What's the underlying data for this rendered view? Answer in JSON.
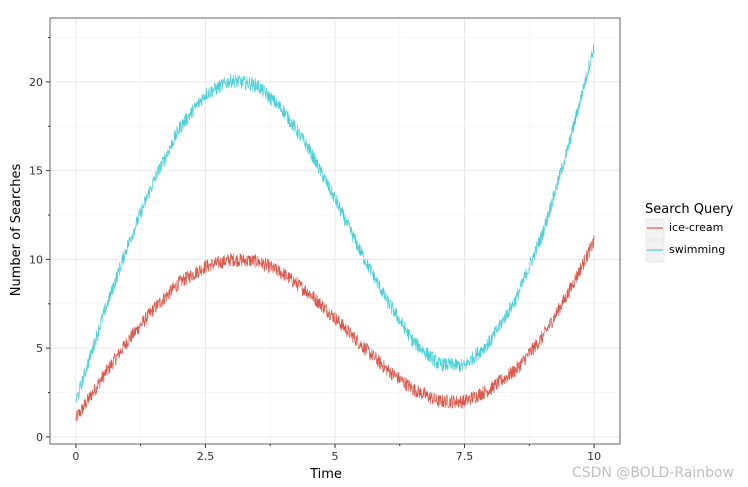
{
  "chart_data": {
    "type": "line",
    "title": "",
    "xlabel": "Time",
    "ylabel": "Number of Searches",
    "xlim": [
      -0.5,
      10.5
    ],
    "ylim": [
      -0.4,
      23.6
    ],
    "x_ticks": [
      0,
      2.5,
      5,
      7.5,
      10
    ],
    "x_tick_labels": [
      "0",
      "2.5",
      "5",
      "7.5",
      "10"
    ],
    "y_ticks": [
      0,
      5,
      10,
      15,
      20
    ],
    "y_tick_labels": [
      "0",
      "5",
      "10",
      "15",
      "20"
    ],
    "grid": true,
    "legend": {
      "title": "Search Query",
      "position": "right"
    },
    "series": [
      {
        "name": "ice-cream",
        "color": "#d9594c",
        "x": [
          0,
          0.5,
          1,
          1.5,
          2,
          2.5,
          3,
          3.5,
          4,
          4.5,
          5,
          5.5,
          6,
          6.5,
          7,
          7.5,
          8,
          8.5,
          9,
          9.5,
          10
        ],
        "y": [
          1.0,
          3.3,
          5.4,
          7.2,
          8.7,
          9.6,
          10.0,
          9.9,
          9.2,
          8.1,
          6.7,
          5.2,
          3.8,
          2.7,
          2.0,
          2.0,
          2.7,
          3.8,
          5.6,
          8.1,
          11.0
        ]
      },
      {
        "name": "swimming",
        "color": "#4dcfd6",
        "x": [
          0,
          0.5,
          1,
          1.5,
          2,
          2.5,
          3,
          3.5,
          4,
          4.5,
          5,
          5.5,
          6,
          6.5,
          7,
          7.5,
          8,
          8.5,
          9,
          9.5,
          10
        ],
        "y": [
          2.0,
          6.6,
          10.8,
          14.4,
          17.4,
          19.3,
          20.1,
          19.8,
          18.4,
          16.2,
          13.4,
          10.4,
          7.7,
          5.4,
          4.1,
          4.0,
          5.4,
          7.8,
          11.4,
          16.3,
          22.0
        ]
      }
    ],
    "noise_amplitude": 0.4
  },
  "watermark": "CSDN @BOLD-Rainbow"
}
